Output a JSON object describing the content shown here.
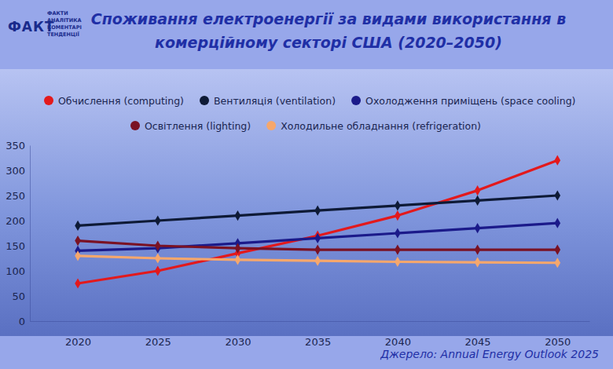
{
  "chart_data": {
    "type": "line",
    "title": [
      "Споживання електроенергії за видами використання в",
      "комерційному секторі США (2020–2050)"
    ],
    "logo": "ФАКТ",
    "logo_tagline": [
      "ФАКТИ",
      "АНАЛІТИКА",
      "КОМЕНТАРІ",
      "ТЕНДЕНЦІЇ"
    ],
    "source": "Джерело: Annual Energy Outlook 2025",
    "x": [
      2020,
      2025,
      2030,
      2035,
      2040,
      2045,
      2050
    ],
    "xlim": [
      2017,
      2052
    ],
    "xticks": [
      2020,
      2025,
      2030,
      2035,
      2040,
      2045,
      2050
    ],
    "ylim": [
      0,
      350
    ],
    "yticks": [
      0,
      50,
      100,
      150,
      200,
      250,
      300,
      350
    ],
    "grid": false,
    "legend": "top",
    "marker": "diamond",
    "series": [
      {
        "name": "Обчислення (computing)",
        "color": "#e3191c",
        "values": [
          75,
          100,
          135,
          170,
          210,
          260,
          320
        ]
      },
      {
        "name": "Вентиляція (ventilation)",
        "color": "#0e1a36",
        "values": [
          190,
          200,
          210,
          220,
          230,
          240,
          250
        ]
      },
      {
        "name": "Охолодження приміщень (space cooling)",
        "color": "#1b1a8a",
        "values": [
          140,
          145,
          155,
          165,
          175,
          185,
          195
        ]
      },
      {
        "name": "Освітлення (lighting)",
        "color": "#7a1224",
        "values": [
          160,
          150,
          145,
          142,
          142,
          142,
          142
        ]
      },
      {
        "name": "Холодильне обладнання (refrigeration)",
        "color": "#f6a76c",
        "values": [
          130,
          125,
          122,
          120,
          118,
          117,
          116
        ]
      }
    ]
  }
}
